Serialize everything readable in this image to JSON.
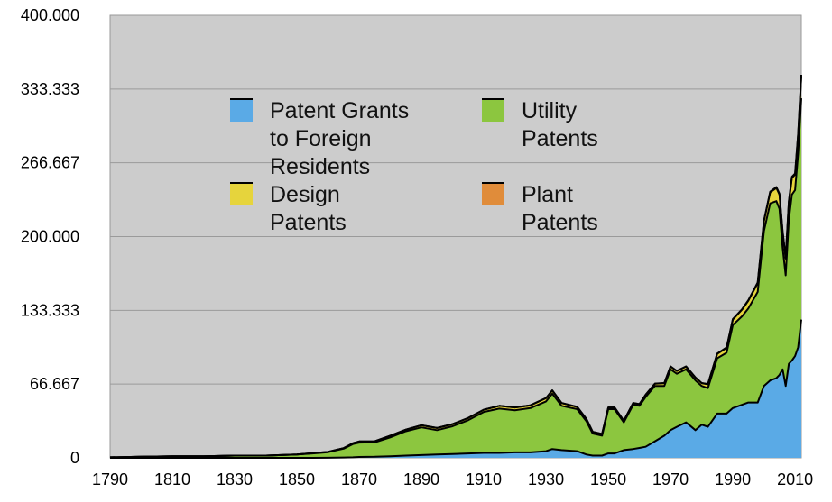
{
  "chart_data": {
    "type": "area",
    "stacked": true,
    "title": "",
    "xlabel": "",
    "ylabel": "",
    "xlim": [
      1790,
      2012
    ],
    "ylim": [
      0,
      400000
    ],
    "x_ticks": [
      "1790",
      "1810",
      "1830",
      "1850",
      "1870",
      "1890",
      "1910",
      "1930",
      "1950",
      "1970",
      "1990",
      "2010"
    ],
    "y_ticks": [
      "0",
      "66.667",
      "133.333",
      "200.000",
      "266.667",
      "333.333",
      "400.000"
    ],
    "grid": "horizontal",
    "background": "#cccccc",
    "legend_placement": "top-left inside",
    "x": [
      1790,
      1800,
      1810,
      1820,
      1830,
      1840,
      1850,
      1855,
      1860,
      1865,
      1868,
      1870,
      1875,
      1880,
      1885,
      1890,
      1895,
      1900,
      1905,
      1910,
      1915,
      1920,
      1925,
      1930,
      1932,
      1935,
      1940,
      1943,
      1945,
      1948,
      1950,
      1952,
      1955,
      1958,
      1960,
      1962,
      1965,
      1968,
      1970,
      1972,
      1975,
      1978,
      1980,
      1982,
      1985,
      1988,
      1990,
      1993,
      1995,
      1998,
      2000,
      2002,
      2004,
      2005,
      2006,
      2007,
      2008,
      2009,
      2010,
      2011,
      2012
    ],
    "series": [
      {
        "name": "Patent Grants to Foreign Residents",
        "color": "#5aaae6",
        "values": [
          0,
          0,
          0,
          0,
          0,
          0,
          0,
          0,
          100,
          300,
          500,
          800,
          1000,
          1500,
          2000,
          2500,
          3000,
          3500,
          4000,
          4500,
          4500,
          5000,
          5000,
          6000,
          8000,
          7000,
          6000,
          3000,
          2000,
          2000,
          4000,
          4000,
          7000,
          8000,
          9000,
          10000,
          15000,
          20000,
          25000,
          28000,
          32000,
          25000,
          30000,
          28000,
          40000,
          40000,
          45000,
          48000,
          50000,
          50000,
          65000,
          70000,
          72000,
          75000,
          80000,
          65000,
          85000,
          88000,
          92000,
          100000,
          125000
        ]
      },
      {
        "name": "Utility Patents",
        "color": "#8cc63f",
        "values": [
          500,
          1000,
          1500,
          1500,
          2000,
          2000,
          3000,
          4000,
          5000,
          8000,
          12000,
          13000,
          13000,
          17000,
          22000,
          25000,
          22000,
          25000,
          30000,
          37000,
          40000,
          38000,
          40000,
          45000,
          50000,
          40000,
          38000,
          30000,
          20000,
          18000,
          40000,
          40000,
          25000,
          40000,
          38000,
          45000,
          50000,
          45000,
          55000,
          48000,
          48000,
          45000,
          35000,
          35000,
          50000,
          55000,
          75000,
          80000,
          85000,
          100000,
          140000,
          160000,
          160000,
          150000,
          110000,
          100000,
          130000,
          150000,
          150000,
          175000,
          200000
        ]
      },
      {
        "name": "Design Patents",
        "color": "#e6d43c",
        "values": [
          0,
          0,
          0,
          0,
          0,
          0,
          100,
          200,
          300,
          500,
          800,
          1000,
          1000,
          1500,
          1500,
          2000,
          2000,
          2000,
          2000,
          2000,
          2500,
          2500,
          2500,
          3000,
          3000,
          2500,
          2000,
          2000,
          1500,
          1500,
          1500,
          1500,
          1500,
          1500,
          1500,
          2000,
          2000,
          2500,
          2500,
          2500,
          2500,
          2500,
          2500,
          3500,
          4000,
          4500,
          5000,
          6000,
          7000,
          8000,
          9000,
          10000,
          12000,
          13000,
          14000,
          15000,
          16000,
          15000,
          14000,
          17000,
          20000
        ]
      },
      {
        "name": "Plant Patents",
        "color": "#e08c3a",
        "values": [
          0,
          0,
          0,
          0,
          0,
          0,
          0,
          0,
          0,
          0,
          0,
          0,
          0,
          0,
          0,
          0,
          0,
          0,
          0,
          0,
          0,
          0,
          0,
          0,
          50,
          100,
          100,
          80,
          80,
          80,
          80,
          80,
          100,
          100,
          100,
          100,
          100,
          150,
          150,
          150,
          150,
          150,
          150,
          200,
          250,
          300,
          350,
          400,
          450,
          500,
          550,
          600,
          700,
          750,
          800,
          900,
          1000,
          1000,
          1000,
          1100,
          1200
        ]
      }
    ]
  },
  "legend": {
    "items": [
      {
        "label_lines": [
          "Patent Grants",
          "to Foreign",
          "Residents"
        ],
        "color": "#5aaae6"
      },
      {
        "label_lines": [
          "Utility",
          "Patents"
        ],
        "color": "#8cc63f"
      },
      {
        "label_lines": [
          "Design",
          "Patents"
        ],
        "color": "#e6d43c"
      },
      {
        "label_lines": [
          "Plant",
          "Patents"
        ],
        "color": "#e08c3a"
      }
    ]
  }
}
